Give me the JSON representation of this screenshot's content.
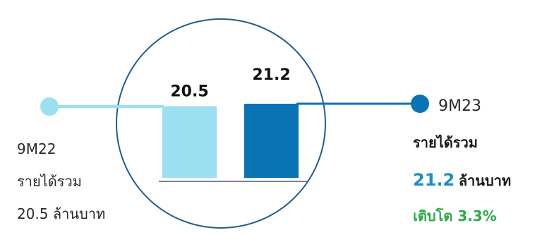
{
  "chart_data": {
    "type": "bar",
    "categories": [
      "9M22",
      "9M23"
    ],
    "values": [
      20.5,
      21.2
    ],
    "value_labels": [
      "20.5",
      "21.2"
    ],
    "colors": [
      "#9ae0f0",
      "#0a73b5"
    ]
  },
  "left_block": {
    "period": "9M22",
    "label": "รายได้รวม",
    "value_text": "20.5 ล้านบาท"
  },
  "right_block": {
    "period": "9M23",
    "label": "รายได้รวม",
    "value": "21.2",
    "unit": "ล้านบาท",
    "growth": "เติบโต 3.3%"
  },
  "colors": {
    "light_marker": "#9ae0f0",
    "dark_marker": "#0a73b5",
    "circle_outline": "#1f5d8f",
    "growth_text": "#2eaa4a",
    "value_highlight": "#1a8ec9"
  }
}
